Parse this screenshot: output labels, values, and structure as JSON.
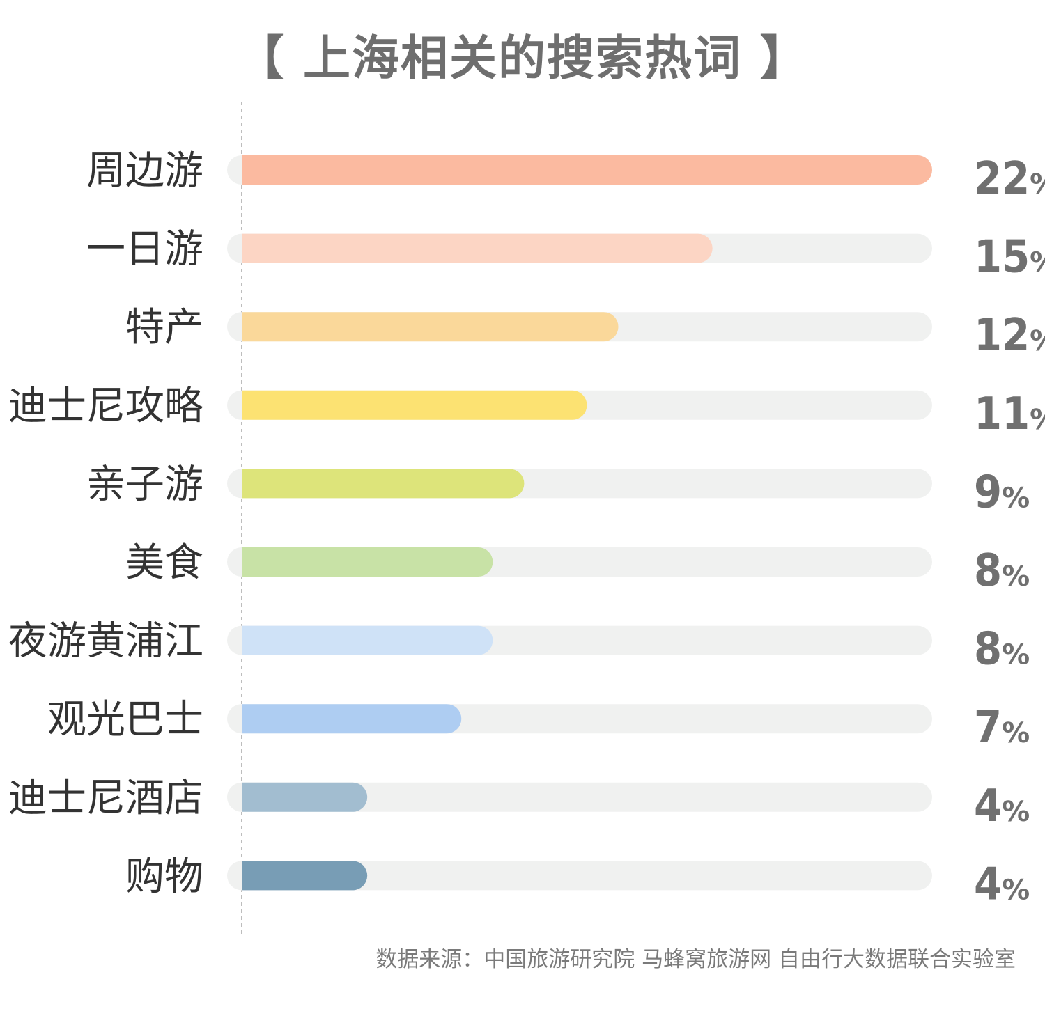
{
  "title": "【 上海相关的搜索热词 】",
  "source": "数据来源：中国旅游研究院 马蜂窝旅游网 自由行大数据联合实验室",
  "chart_data": {
    "type": "bar",
    "orientation": "horizontal",
    "title": "【 上海相关的搜索热词 】",
    "unit": "%",
    "xlim": [
      0,
      22
    ],
    "grid": false,
    "legend": "none",
    "categories": [
      "周边游",
      "一日游",
      "特产",
      "迪士尼攻略",
      "亲子游",
      "美食",
      "夜游黄浦江",
      "观光巴士",
      "迪士尼酒店",
      "购物"
    ],
    "values": [
      22,
      15,
      12,
      11,
      9,
      8,
      8,
      7,
      4,
      4
    ],
    "colors": [
      "#fbbaa0",
      "#fcd5c4",
      "#fad89a",
      "#fce272",
      "#dde47a",
      "#c8e2a6",
      "#cfe2f7",
      "#aecdf2",
      "#a2bdd0",
      "#789db5"
    ],
    "track_color": "#f0f1f0"
  }
}
